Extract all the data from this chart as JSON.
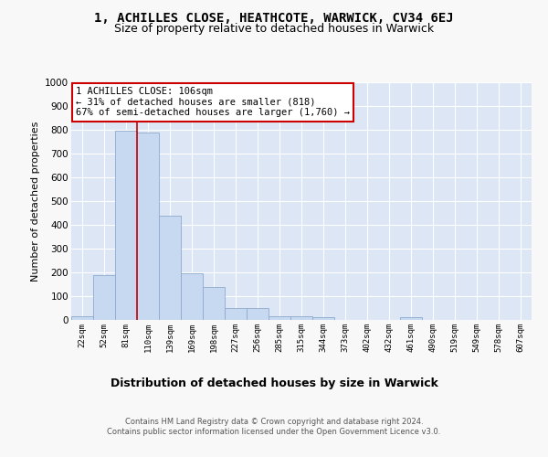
{
  "title1": "1, ACHILLES CLOSE, HEATHCOTE, WARWICK, CV34 6EJ",
  "title2": "Size of property relative to detached houses in Warwick",
  "xlabel": "Distribution of detached houses by size in Warwick",
  "ylabel": "Number of detached properties",
  "bin_labels": [
    "22sqm",
    "52sqm",
    "81sqm",
    "110sqm",
    "139sqm",
    "169sqm",
    "198sqm",
    "227sqm",
    "256sqm",
    "285sqm",
    "315sqm",
    "344sqm",
    "373sqm",
    "402sqm",
    "432sqm",
    "461sqm",
    "490sqm",
    "519sqm",
    "549sqm",
    "578sqm",
    "607sqm"
  ],
  "bar_heights": [
    15,
    190,
    795,
    790,
    440,
    195,
    140,
    50,
    50,
    15,
    15,
    10,
    0,
    0,
    0,
    10,
    0,
    0,
    0,
    0,
    0
  ],
  "bar_color": "#c6d9f0",
  "bar_edge_color": "#8faacc",
  "red_line_color": "#cc0000",
  "annotation_text": "1 ACHILLES CLOSE: 106sqm\n← 31% of detached houses are smaller (818)\n67% of semi-detached houses are larger (1,760) →",
  "annotation_box_color": "#ffffff",
  "annotation_box_edge": "#cc0000",
  "footer_text": "Contains HM Land Registry data © Crown copyright and database right 2024.\nContains public sector information licensed under the Open Government Licence v3.0.",
  "ylim": [
    0,
    1000
  ],
  "background_color": "#dce6f5",
  "grid_color": "#ffffff",
  "fig_bg": "#f8f8f8",
  "title1_fontsize": 10,
  "title2_fontsize": 9,
  "xlabel_fontsize": 9,
  "ylabel_fontsize": 8,
  "red_line_x": 2.5
}
